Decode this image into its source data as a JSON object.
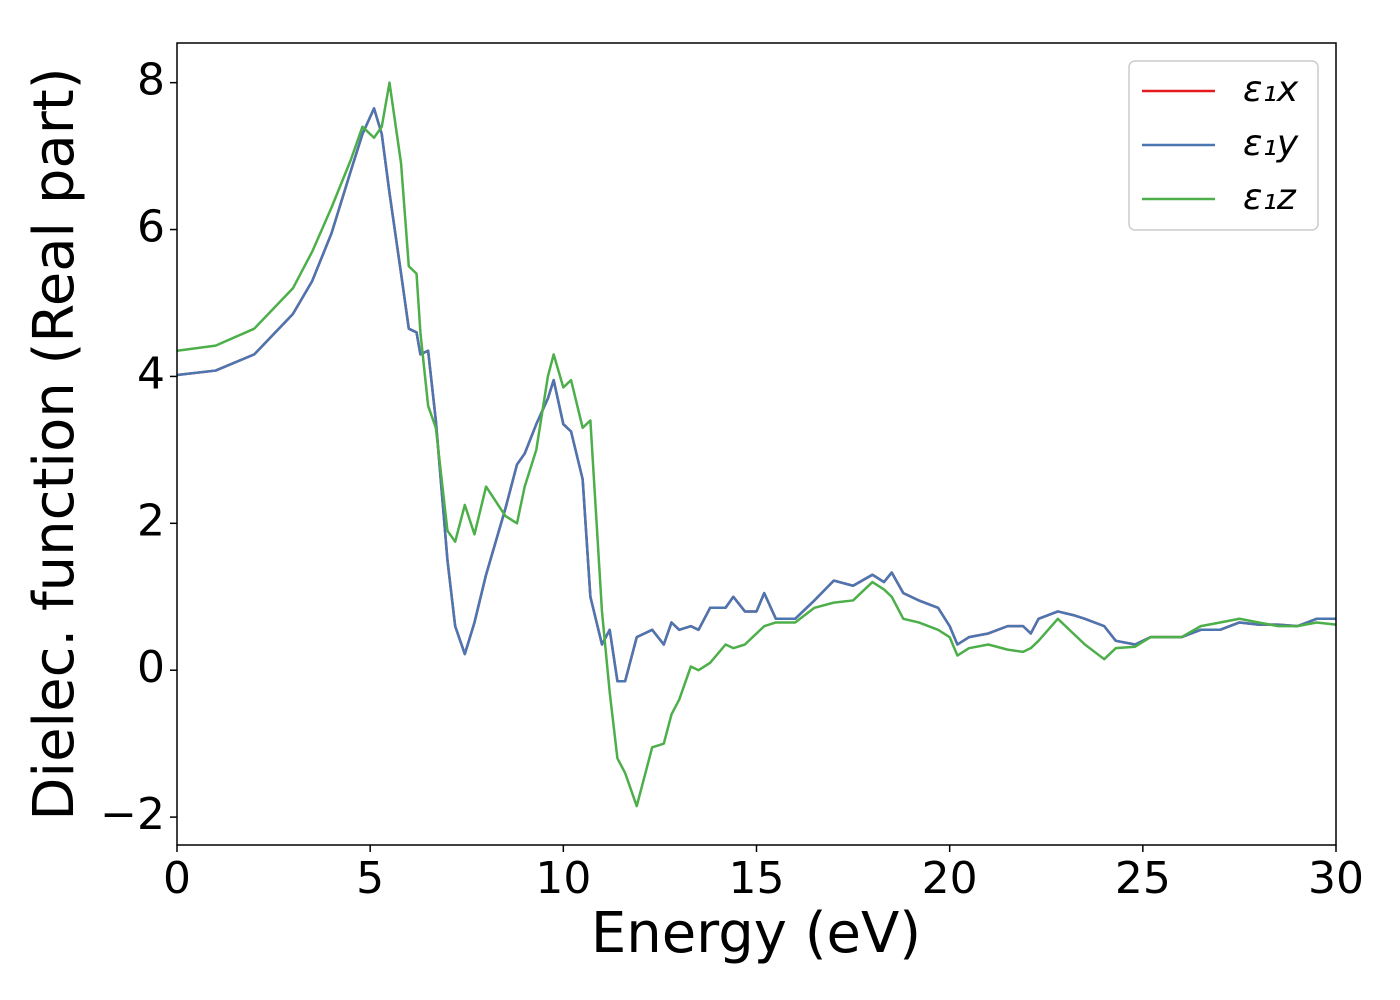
{
  "chart_data": {
    "type": "line",
    "xlabel": "Energy (eV)",
    "ylabel": "Dielec. function (Real part)",
    "x": [
      0,
      1,
      2,
      3,
      3.5,
      4,
      4.5,
      4.8,
      5.1,
      5.3,
      5.5,
      5.8,
      6.0,
      6.2,
      6.3,
      6.5,
      6.7,
      7.0,
      7.2,
      7.45,
      7.7,
      8.0,
      8.5,
      8.8,
      9.0,
      9.3,
      9.6,
      9.75,
      10.0,
      10.2,
      10.5,
      10.7,
      11.0,
      11.2,
      11.4,
      11.6,
      11.9,
      12.3,
      12.6,
      12.8,
      13.0,
      13.3,
      13.5,
      13.8,
      14.2,
      14.4,
      14.7,
      15.0,
      15.2,
      15.5,
      16.0,
      16.5,
      17.0,
      17.5,
      18.0,
      18.3,
      18.5,
      18.8,
      19.2,
      19.7,
      20.0,
      20.2,
      20.5,
      21.0,
      21.5,
      21.9,
      22.1,
      22.3,
      22.8,
      23.2,
      23.5,
      24.0,
      24.3,
      24.8,
      25.2,
      26.0,
      26.5,
      27.0,
      27.5,
      28.0,
      28.5,
      29.0,
      29.5,
      30.0
    ],
    "series": [
      {
        "name": "ε₁x",
        "color": "#e41a1c",
        "values": [
          4.02,
          4.08,
          4.3,
          4.85,
          5.3,
          5.95,
          6.8,
          7.3,
          7.65,
          7.3,
          6.5,
          5.4,
          4.65,
          4.6,
          4.3,
          4.35,
          3.4,
          1.5,
          0.6,
          0.22,
          0.65,
          1.3,
          2.2,
          2.8,
          2.95,
          3.35,
          3.7,
          3.95,
          3.35,
          3.25,
          2.6,
          1.0,
          0.35,
          0.55,
          -0.15,
          -0.15,
          0.45,
          0.55,
          0.35,
          0.65,
          0.55,
          0.6,
          0.55,
          0.85,
          0.85,
          1.0,
          0.8,
          0.8,
          1.05,
          0.7,
          0.7,
          0.95,
          1.22,
          1.15,
          1.3,
          1.2,
          1.33,
          1.05,
          0.95,
          0.85,
          0.6,
          0.35,
          0.45,
          0.5,
          0.6,
          0.6,
          0.5,
          0.7,
          0.8,
          0.75,
          0.7,
          0.6,
          0.4,
          0.35,
          0.45,
          0.45,
          0.55,
          0.55,
          0.65,
          0.62,
          0.62,
          0.6,
          0.7,
          0.7
        ]
      },
      {
        "name": "ε₁y",
        "color": "#4a76b2",
        "values": [
          4.02,
          4.08,
          4.3,
          4.85,
          5.3,
          5.95,
          6.8,
          7.3,
          7.65,
          7.3,
          6.5,
          5.4,
          4.65,
          4.6,
          4.3,
          4.35,
          3.4,
          1.5,
          0.6,
          0.22,
          0.65,
          1.3,
          2.2,
          2.8,
          2.95,
          3.35,
          3.7,
          3.95,
          3.35,
          3.25,
          2.6,
          1.0,
          0.35,
          0.55,
          -0.15,
          -0.15,
          0.45,
          0.55,
          0.35,
          0.65,
          0.55,
          0.6,
          0.55,
          0.85,
          0.85,
          1.0,
          0.8,
          0.8,
          1.05,
          0.7,
          0.7,
          0.95,
          1.22,
          1.15,
          1.3,
          1.2,
          1.33,
          1.05,
          0.95,
          0.85,
          0.6,
          0.35,
          0.45,
          0.5,
          0.6,
          0.6,
          0.5,
          0.7,
          0.8,
          0.75,
          0.7,
          0.6,
          0.4,
          0.35,
          0.45,
          0.45,
          0.55,
          0.55,
          0.65,
          0.62,
          0.62,
          0.6,
          0.7,
          0.7
        ]
      },
      {
        "name": "ε₁z",
        "color": "#4daf4a",
        "values": [
          4.35,
          4.42,
          4.65,
          5.2,
          5.7,
          6.3,
          6.95,
          7.4,
          7.25,
          7.4,
          8.0,
          6.9,
          5.5,
          5.4,
          4.6,
          3.6,
          3.3,
          1.9,
          1.75,
          2.25,
          1.85,
          2.5,
          2.1,
          2.0,
          2.5,
          3.0,
          4.0,
          4.3,
          3.85,
          3.95,
          3.3,
          3.4,
          0.8,
          -0.3,
          -1.2,
          -1.4,
          -1.85,
          -1.05,
          -1.0,
          -0.6,
          -0.4,
          0.05,
          0.0,
          0.1,
          0.35,
          0.3,
          0.35,
          0.5,
          0.6,
          0.65,
          0.65,
          0.85,
          0.92,
          0.95,
          1.2,
          1.1,
          1.0,
          0.7,
          0.65,
          0.55,
          0.45,
          0.2,
          0.3,
          0.35,
          0.28,
          0.25,
          0.3,
          0.4,
          0.7,
          0.5,
          0.35,
          0.15,
          0.3,
          0.32,
          0.45,
          0.45,
          0.6,
          0.65,
          0.7,
          0.65,
          0.6,
          0.6,
          0.65,
          0.62
        ]
      }
    ],
    "xlim": [
      0,
      30
    ],
    "xticks": [
      0,
      5,
      10,
      15,
      20,
      25,
      30
    ],
    "ylim": [
      -2.38,
      8.54
    ],
    "yticks": [
      {
        "value": -2,
        "label": "−2"
      },
      0,
      2,
      4,
      6,
      8
    ],
    "legend": "upper right"
  }
}
